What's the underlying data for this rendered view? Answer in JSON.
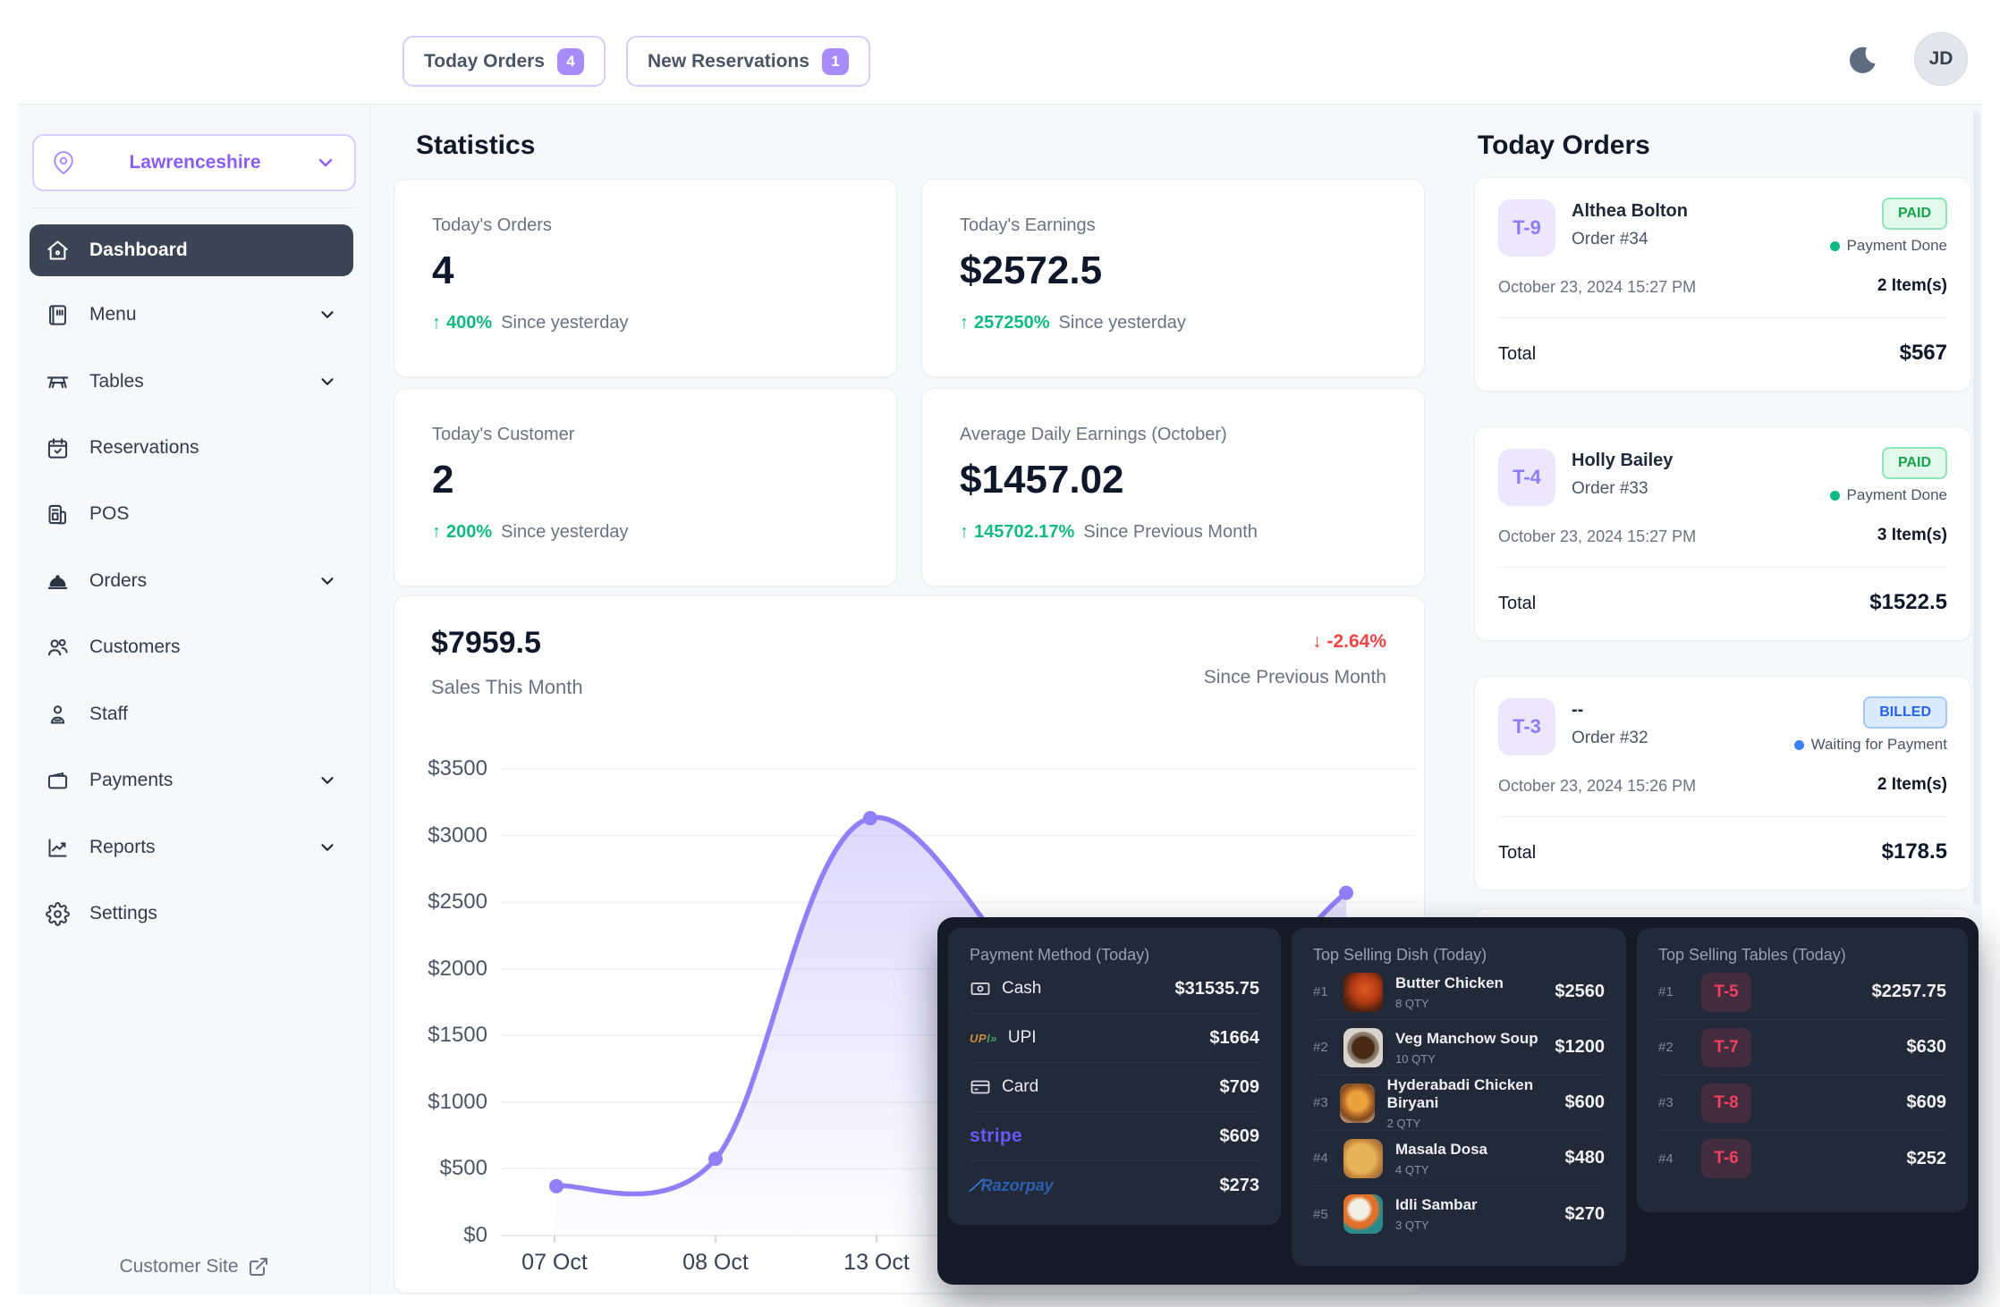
{
  "header": {
    "today_orders_label": "Today Orders",
    "today_orders_count": "4",
    "new_reservations_label": "New Reservations",
    "new_reservations_count": "1",
    "avatar_initials": "JD"
  },
  "sidebar": {
    "location": "Lawrenceshire",
    "items": [
      {
        "label": "Dashboard"
      },
      {
        "label": "Menu"
      },
      {
        "label": "Tables"
      },
      {
        "label": "Reservations"
      },
      {
        "label": "POS"
      },
      {
        "label": "Orders"
      },
      {
        "label": "Customers"
      },
      {
        "label": "Staff"
      },
      {
        "label": "Payments"
      },
      {
        "label": "Reports"
      },
      {
        "label": "Settings"
      }
    ],
    "footer_link": "Customer Site"
  },
  "statistics": {
    "title": "Statistics",
    "cards": [
      {
        "label": "Today's Orders",
        "value": "4",
        "arrow": "↑",
        "delta": "400%",
        "note": "Since yesterday"
      },
      {
        "label": "Today's Earnings",
        "value": "$2572.5",
        "arrow": "↑",
        "delta": "257250%",
        "note": "Since yesterday"
      },
      {
        "label": "Today's Customer",
        "value": "2",
        "arrow": "↑",
        "delta": "200%",
        "note": "Since yesterday"
      },
      {
        "label": "Average Daily Earnings (October)",
        "value": "$1457.02",
        "arrow": "↑",
        "delta": "145702.17%",
        "note": "Since Previous Month"
      }
    ]
  },
  "chart_data": {
    "type": "area",
    "title": "$7959.5",
    "subtitle": "Sales This Month",
    "delta_arrow": "↓",
    "delta": "-2.64%",
    "delta_note": "Since Previous Month",
    "ylabel": "",
    "xlabel": "",
    "ylim": [
      0,
      3500
    ],
    "y_ticks": [
      "$0",
      "$500",
      "$1000",
      "$1500",
      "$2000",
      "$2500",
      "$3000",
      "$3500"
    ],
    "x_ticks_visible": [
      "07 Oct",
      "08 Oct",
      "13 Oct"
    ],
    "points": [
      {
        "label": "07 Oct",
        "value": 370,
        "dot": true
      },
      {
        "label": "08 Oct",
        "value": 575,
        "dot": true
      },
      {
        "label": "13 Oct",
        "value": 3130,
        "dot": true
      },
      {
        "label": "",
        "value": 1310,
        "dot": false
      },
      {
        "label": "",
        "value": 2570,
        "dot": true
      }
    ],
    "line_color": "#917ff7",
    "grid": true,
    "legend": "none"
  },
  "today_orders": {
    "title": "Today Orders",
    "orders": [
      {
        "table": "T-9",
        "customer": "Althea Bolton",
        "order_no": "Order #34",
        "status": "PAID",
        "status_note": "Payment Done",
        "datetime": "October 23, 2024 15:27 PM",
        "items": "2 Item(s)",
        "total_label": "Total",
        "total": "$567"
      },
      {
        "table": "T-4",
        "customer": "Holly Bailey",
        "order_no": "Order #33",
        "status": "PAID",
        "status_note": "Payment Done",
        "datetime": "October 23, 2024 15:27 PM",
        "items": "3 Item(s)",
        "total_label": "Total",
        "total": "$1522.5"
      },
      {
        "table": "T-3",
        "customer": "--",
        "order_no": "Order #32",
        "status": "BILLED",
        "status_note": "Waiting for Payment",
        "datetime": "October 23, 2024 15:26 PM",
        "items": "2 Item(s)",
        "total_label": "Total",
        "total": "$178.5"
      }
    ]
  },
  "overlay": {
    "payment_methods": {
      "title": "Payment Method (Today)",
      "rows": [
        {
          "name": "Cash",
          "value": "$31535.75"
        },
        {
          "name": "UPI",
          "value": "$1664"
        },
        {
          "name": "Card",
          "value": "$709"
        },
        {
          "name": "stripe",
          "value": "$609"
        },
        {
          "name": "Razorpay",
          "value": "$273"
        }
      ]
    },
    "top_dishes": {
      "title": "Top Selling Dish (Today)",
      "rows": [
        {
          "rank": "#1",
          "name": "Butter Chicken",
          "qty": "8 QTY",
          "value": "$2560"
        },
        {
          "rank": "#2",
          "name": "Veg Manchow Soup",
          "qty": "10 QTY",
          "value": "$1200"
        },
        {
          "rank": "#3",
          "name": "Hyderabadi Chicken Biryani",
          "qty": "2 QTY",
          "value": "$600"
        },
        {
          "rank": "#4",
          "name": "Masala Dosa",
          "qty": "4 QTY",
          "value": "$480"
        },
        {
          "rank": "#5",
          "name": "Idli Sambar",
          "qty": "3 QTY",
          "value": "$270"
        }
      ]
    },
    "top_tables": {
      "title": "Top Selling Tables (Today)",
      "rows": [
        {
          "rank": "#1",
          "table": "T-5",
          "value": "$2257.75"
        },
        {
          "rank": "#2",
          "table": "T-7",
          "value": "$630"
        },
        {
          "rank": "#3",
          "table": "T-8",
          "value": "$609"
        },
        {
          "rank": "#4",
          "table": "T-6",
          "value": "$252"
        }
      ]
    }
  },
  "colors": {
    "accent": "#8b5cf6",
    "accent_light": "#a78bfa",
    "green": "#10b981",
    "red": "#ef4444",
    "blue": "#3b82f6",
    "dark_panel": "#141a26",
    "dark_card": "#222938",
    "active_item": "#3b4454",
    "table_badge_text": "#f43f5e"
  }
}
